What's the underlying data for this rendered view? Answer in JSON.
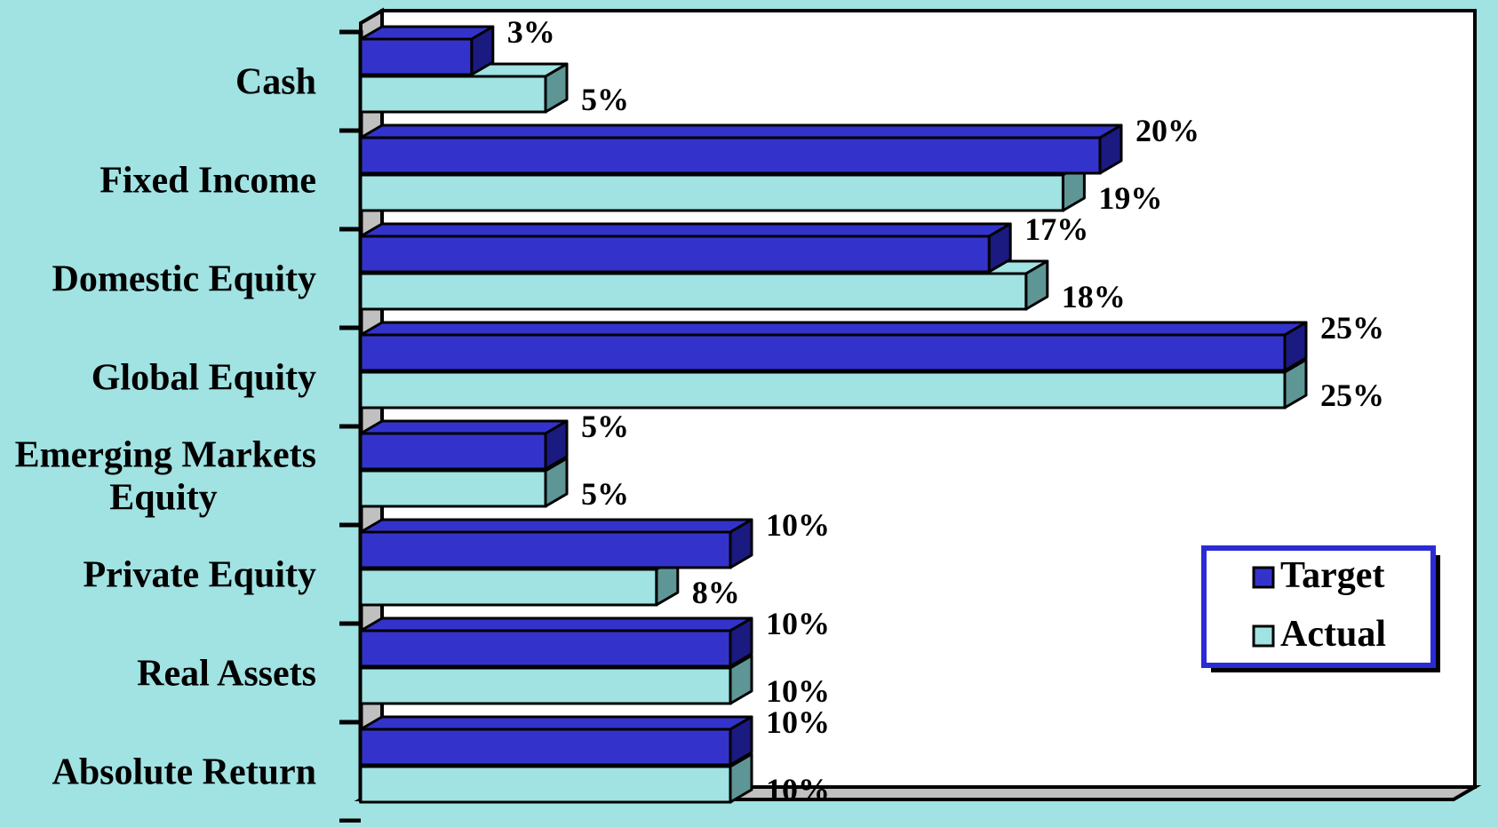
{
  "chart_data": {
    "type": "bar",
    "orientation": "horizontal",
    "style": "3d",
    "categories": [
      [
        "Cash"
      ],
      [
        "Fixed Income"
      ],
      [
        "Domestic Equity"
      ],
      [
        "Global Equity"
      ],
      [
        "Emerging Markets",
        "Equity"
      ],
      [
        "Private Equity"
      ],
      [
        "Real Assets"
      ],
      [
        "Absolute Return"
      ]
    ],
    "series": [
      {
        "name": "Target",
        "color": "#3333cc",
        "side": "#1a1a80",
        "values": [
          3,
          20,
          17,
          25,
          5,
          10,
          10,
          10
        ],
        "labels": [
          "3%",
          "20%",
          "17%",
          "25%",
          "5%",
          "10%",
          "10%",
          "10%"
        ]
      },
      {
        "name": "Actual",
        "color": "#a1e2e2",
        "side": "#5e9696",
        "values": [
          5,
          19,
          18,
          25,
          5,
          8,
          10,
          10
        ],
        "labels": [
          "5%",
          "19%",
          "18%",
          "25%",
          "5%",
          "8%",
          "10%",
          "10%"
        ]
      }
    ],
    "xlim": [
      0,
      25
    ],
    "grid": false,
    "legend_position": "bottom-right",
    "colors": {
      "background": "#a1e2e2",
      "plot_area": "#ffffff",
      "floor": "#c0c0c0",
      "legend_border": "#2b2bd6"
    }
  }
}
